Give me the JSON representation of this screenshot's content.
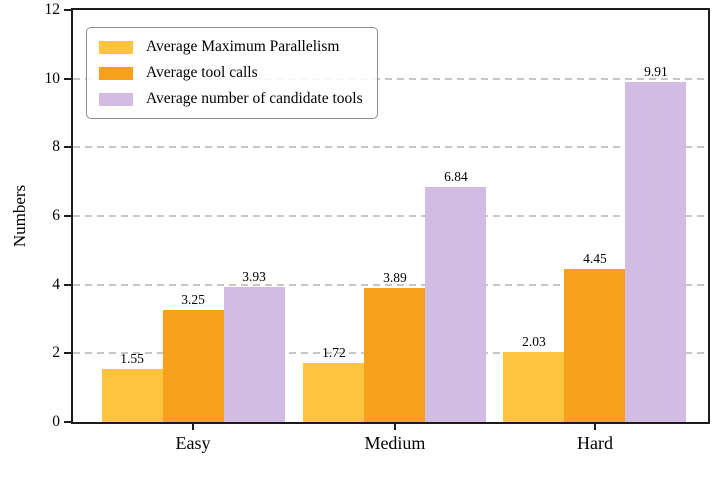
{
  "chart_data": {
    "type": "bar",
    "title": "",
    "xlabel": "",
    "ylabel": "Numbers",
    "ylim": [
      0,
      12
    ],
    "yticks": [
      0,
      2,
      4,
      6,
      8,
      10,
      12
    ],
    "grid": "horizontal dashed gridlines at 2,4,6,8,10",
    "legend_position": "upper left",
    "bar_value_labels": true,
    "categories": [
      "Easy",
      "Medium",
      "Hard"
    ],
    "series": [
      {
        "name": "Average Maximum Parallelism",
        "color": "#FEC43D",
        "values": [
          1.55,
          1.72,
          2.03
        ],
        "labels": [
          "1.55",
          "1.72",
          "2.03"
        ]
      },
      {
        "name": "Average tool calls",
        "color": "#F6A01B",
        "values": [
          3.25,
          3.89,
          4.45
        ],
        "labels": [
          "3.25",
          "3.89",
          "4.45"
        ]
      },
      {
        "name": "Average number of candidate tools",
        "color": "#D3BCE3",
        "values": [
          3.93,
          6.84,
          9.91
        ],
        "labels": [
          "3.93",
          "6.84",
          "9.91"
        ]
      }
    ],
    "colors": {
      "grid": "#c7c7c7",
      "spine": "#1c1c1c",
      "text": "#000000",
      "legend_border": "#8f8f8f"
    }
  }
}
